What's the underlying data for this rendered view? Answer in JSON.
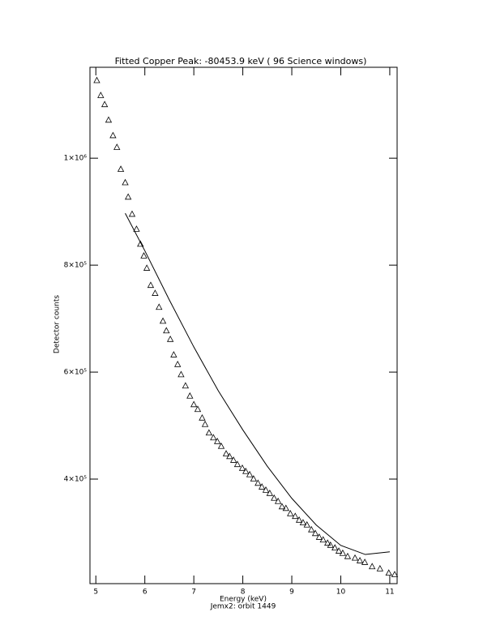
{
  "chart_data": {
    "type": "scatter",
    "title": "Fitted Copper Peak:     -80453.9 keV (      96 Science windows)",
    "x_label": "Energy (keV)",
    "footer": "Jemx2: orbit 1449",
    "y_label": "Detector counts",
    "xlim": [
      4.88,
      11.15
    ],
    "ylim": [
      204500,
      1170000
    ],
    "xticks": [
      5,
      6,
      7,
      8,
      9,
      10,
      11
    ],
    "yticks": [
      {
        "value": 400000,
        "label": "4×10⁵"
      },
      {
        "value": 600000,
        "label": "6×10⁵"
      },
      {
        "value": 800000,
        "label": "8×10⁵"
      },
      {
        "value": 1000000,
        "label": "1×10⁶"
      }
    ],
    "series": [
      {
        "marker": "triangle",
        "color": "#000000",
        "x": [
          5.02,
          5.1,
          5.18,
          5.26,
          5.35,
          5.43,
          5.51,
          5.6,
          5.66,
          5.74,
          5.83,
          5.91,
          5.98,
          6.04,
          6.12,
          6.21,
          6.29,
          6.37,
          6.44,
          6.52,
          6.59,
          6.67,
          6.74,
          6.83,
          6.92,
          7.0,
          7.08,
          7.17,
          7.23,
          7.31,
          7.4,
          7.48,
          7.56,
          7.66,
          7.73,
          7.81,
          7.89,
          7.99,
          8.06,
          8.14,
          8.22,
          8.31,
          8.39,
          8.47,
          8.55,
          8.64,
          8.72,
          8.8,
          8.88,
          8.97,
          9.07,
          9.15,
          9.23,
          9.31,
          9.4,
          9.48,
          9.56,
          9.64,
          9.73,
          9.79,
          9.88,
          9.96,
          10.04,
          10.14,
          10.29,
          10.39,
          10.49,
          10.64,
          10.8,
          10.98,
          11.1
        ],
        "values": [
          1145000,
          1117000,
          1100000,
          1071000,
          1042000,
          1020000,
          979000,
          954000,
          927000,
          895000,
          867000,
          839000,
          817000,
          794000,
          762000,
          747000,
          721000,
          695000,
          677000,
          661000,
          632000,
          614000,
          595000,
          574000,
          555000,
          539000,
          530000,
          514000,
          502000,
          486000,
          477000,
          470000,
          461000,
          447000,
          442000,
          435000,
          427000,
          420000,
          414000,
          408000,
          400000,
          392000,
          385000,
          379000,
          373000,
          364000,
          358000,
          348000,
          345000,
          335000,
          330000,
          323000,
          318000,
          314000,
          305000,
          298000,
          291000,
          286000,
          280000,
          276000,
          271000,
          265000,
          261000,
          255000,
          252000,
          247000,
          244000,
          236000,
          232000,
          224000,
          221000
        ]
      },
      {
        "style": "line",
        "color": "#000000",
        "x": [
          5.6,
          6.0,
          6.5,
          7.0,
          7.5,
          8.0,
          8.5,
          9.0,
          9.5,
          10.0,
          10.5,
          11.0
        ],
        "values": [
          897000,
          827000,
          735000,
          647000,
          565000,
          492000,
          424000,
          364000,
          314000,
          276000,
          259000,
          264000
        ]
      }
    ]
  }
}
